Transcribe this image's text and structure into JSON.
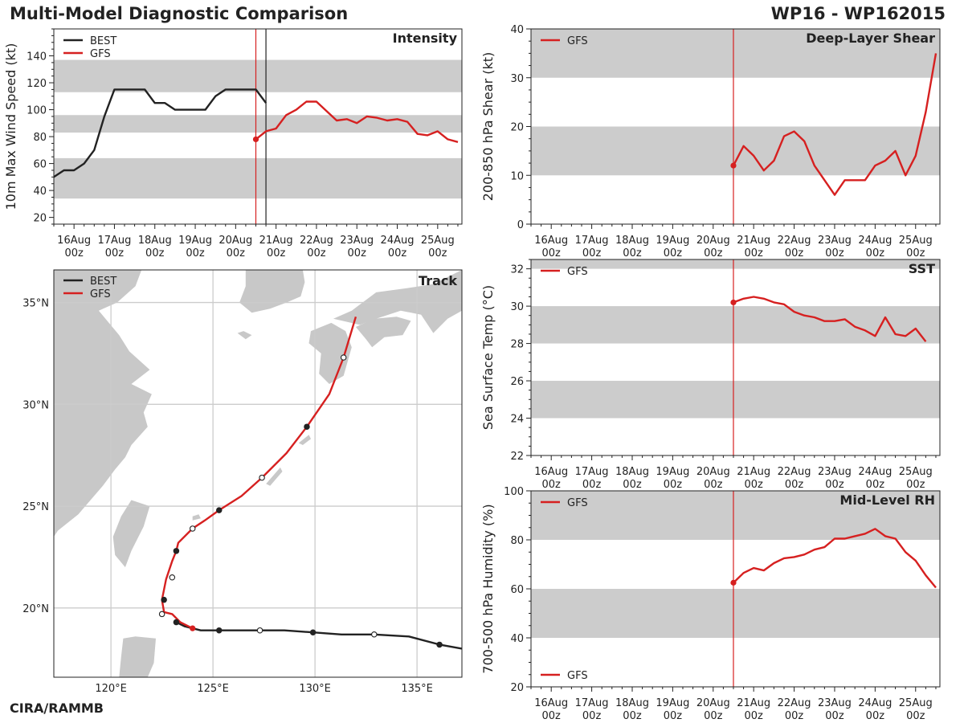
{
  "header": {
    "title": "Multi-Model Diagnostic Comparison",
    "storm_id": "WP16 - WP162015",
    "credit": "CIRA/RAMMB"
  },
  "colors": {
    "best": "#222222",
    "gfs": "#d62020",
    "band": "#cccccc",
    "land": "#c8c8c8",
    "grid": "#cccccc"
  },
  "time_axis": {
    "labels": [
      [
        "16Aug",
        "00z"
      ],
      [
        "17Aug",
        "00z"
      ],
      [
        "18Aug",
        "00z"
      ],
      [
        "19Aug",
        "00z"
      ],
      [
        "20Aug",
        "00z"
      ],
      [
        "21Aug",
        "00z"
      ],
      [
        "22Aug",
        "00z"
      ],
      [
        "23Aug",
        "00z"
      ],
      [
        "24Aug",
        "00z"
      ],
      [
        "25Aug",
        "00z"
      ]
    ],
    "init_day": 20.5,
    "best_last_day": 20.75
  },
  "chart_data": [
    {
      "id": "intensity",
      "type": "line",
      "title": "Intensity",
      "ylabel": "10m Max Wind Speed (kt)",
      "xlim": [
        15.5,
        25.6
      ],
      "ylim": [
        15,
        160
      ],
      "yticks": [
        20,
        40,
        60,
        80,
        100,
        120,
        140
      ],
      "bands": [
        [
          34,
          64
        ],
        [
          83,
          96
        ],
        [
          113,
          137
        ]
      ],
      "legend": [
        "BEST",
        "GFS"
      ],
      "series": [
        {
          "name": "BEST",
          "x": [
            15.5,
            15.75,
            16,
            16.25,
            16.5,
            16.75,
            17,
            17.25,
            17.5,
            17.75,
            18,
            18.25,
            18.5,
            18.75,
            19,
            19.25,
            19.5,
            19.75,
            20,
            20.25,
            20.5,
            20.75
          ],
          "y": [
            50,
            55,
            55,
            60,
            70,
            95,
            115,
            115,
            115,
            115,
            105,
            105,
            100,
            100,
            100,
            100,
            110,
            115,
            115,
            115,
            115,
            105
          ]
        },
        {
          "name": "GFS",
          "x": [
            20.5,
            20.75,
            21,
            21.25,
            21.5,
            21.75,
            22,
            22.25,
            22.5,
            22.75,
            23,
            23.25,
            23.5,
            23.75,
            24,
            24.25,
            24.5,
            24.75,
            25,
            25.25,
            25.5
          ],
          "y": [
            78,
            84,
            86,
            96,
            100,
            106,
            106,
            99,
            92,
            93,
            90,
            95,
            94,
            92,
            93,
            91,
            82,
            81,
            84,
            78,
            76
          ]
        }
      ]
    },
    {
      "id": "shear",
      "type": "line",
      "title": "Deep-Layer Shear",
      "ylabel": "200-850 hPa Shear (kt)",
      "xlim": [
        15.5,
        25.6
      ],
      "ylim": [
        0,
        40
      ],
      "yticks": [
        0,
        10,
        20,
        30,
        40
      ],
      "bands": [
        [
          10,
          20
        ],
        [
          30,
          40
        ]
      ],
      "legend": [
        "GFS"
      ],
      "series": [
        {
          "name": "GFS",
          "x": [
            20.5,
            20.75,
            21,
            21.25,
            21.5,
            21.75,
            22,
            22.25,
            22.5,
            22.75,
            23,
            23.25,
            23.5,
            23.75,
            24,
            24.25,
            24.5,
            24.75,
            25,
            25.25,
            25.5
          ],
          "y": [
            12,
            16,
            14,
            11,
            13,
            18,
            19,
            17,
            12,
            9,
            6,
            9,
            9,
            9,
            12,
            13,
            15,
            10,
            14,
            23,
            35
          ]
        }
      ]
    },
    {
      "id": "sst",
      "type": "line",
      "title": "SST",
      "ylabel": "Sea Surface Temp (°C)",
      "xlim": [
        15.5,
        25.6
      ],
      "ylim": [
        22,
        32.5
      ],
      "yticks": [
        22,
        24,
        26,
        28,
        30,
        32
      ],
      "bands": [
        [
          24,
          26
        ],
        [
          28,
          30
        ],
        [
          32,
          33
        ]
      ],
      "legend": [
        "GFS"
      ],
      "series": [
        {
          "name": "GFS",
          "x": [
            20.5,
            20.75,
            21,
            21.25,
            21.5,
            21.75,
            22,
            22.25,
            22.5,
            22.75,
            23,
            23.25,
            23.5,
            23.75,
            24,
            24.25,
            24.5,
            24.75,
            25,
            25.25
          ],
          "y": [
            30.2,
            30.4,
            30.5,
            30.4,
            30.2,
            30.1,
            29.7,
            29.5,
            29.4,
            29.2,
            29.2,
            29.3,
            28.9,
            28.7,
            28.4,
            29.4,
            28.5,
            28.4,
            28.8,
            28.1
          ]
        }
      ]
    },
    {
      "id": "rh",
      "type": "line",
      "title": "Mid-Level RH",
      "ylabel": "700-500 hPa Humidity (%)",
      "xlim": [
        15.5,
        25.6
      ],
      "ylim": [
        20,
        100
      ],
      "yticks": [
        20,
        40,
        60,
        80,
        100
      ],
      "bands": [
        [
          40,
          60
        ],
        [
          80,
          100
        ]
      ],
      "legend": [
        "GFS"
      ],
      "series": [
        {
          "name": "GFS",
          "x": [
            20.5,
            20.75,
            21,
            21.25,
            21.5,
            21.75,
            22,
            22.25,
            22.5,
            22.75,
            23,
            23.25,
            23.5,
            23.75,
            24,
            24.25,
            24.5,
            24.75,
            25,
            25.25,
            25.5
          ],
          "y": [
            62.5,
            66.5,
            68.5,
            67.5,
            70.5,
            72.5,
            73,
            74,
            76,
            77,
            80.5,
            80.5,
            81.5,
            82.5,
            84.5,
            81.5,
            80.5,
            75,
            71.5,
            65.5,
            60.5
          ]
        }
      ]
    },
    {
      "id": "track",
      "type": "scatter",
      "title": "Track",
      "xlim": [
        117.2,
        137.2
      ],
      "ylim": [
        16.6,
        36.6
      ],
      "xticks": [
        120,
        125,
        130,
        135
      ],
      "xticklabels": [
        "120°E",
        "125°E",
        "130°E",
        "135°E"
      ],
      "yticks": [
        20,
        25,
        30,
        35
      ],
      "yticklabels": [
        "20°N",
        "25°N",
        "30°N",
        "35°N"
      ],
      "legend": [
        "BEST",
        "GFS"
      ],
      "series": [
        {
          "name": "BEST",
          "lon": [
            137.2,
            136.1,
            134.6,
            132.9,
            131.3,
            129.9,
            128.5,
            127.3,
            125.8,
            125.3,
            124.4,
            123.6,
            123.2
          ],
          "lat": [
            18.0,
            18.2,
            18.6,
            18.7,
            18.7,
            18.8,
            18.9,
            18.9,
            18.9,
            18.9,
            18.9,
            19.1,
            19.3
          ]
        },
        {
          "name": "GFS",
          "lon": [
            124.0,
            123.4,
            123.0,
            122.6,
            122.5,
            122.7,
            123.0,
            123.2,
            123.3,
            124.0,
            124.6,
            125.3,
            126.4,
            127.4,
            128.6,
            129.6,
            130.7,
            131.4,
            132.0
          ],
          "lat": [
            19.0,
            19.3,
            19.7,
            19.8,
            20.4,
            21.4,
            22.3,
            22.8,
            23.2,
            23.9,
            24.3,
            24.8,
            25.5,
            26.4,
            27.6,
            28.9,
            30.5,
            32.3,
            34.3
          ]
        }
      ],
      "markers": {
        "best_filled": [
          [
            136.1,
            18.2
          ],
          [
            129.9,
            18.8
          ],
          [
            125.3,
            18.9
          ],
          [
            123.2,
            19.3
          ]
        ],
        "best_open": [
          [
            132.9,
            18.7
          ],
          [
            127.3,
            18.9
          ]
        ],
        "gfs_filled": [
          [
            122.6,
            20.4
          ],
          [
            123.2,
            22.8
          ],
          [
            125.3,
            24.8
          ],
          [
            129.6,
            28.9
          ]
        ],
        "gfs_open": [
          [
            122.5,
            19.7
          ],
          [
            123.0,
            21.5
          ],
          [
            124.0,
            23.9
          ],
          [
            127.4,
            26.4
          ],
          [
            131.4,
            32.3
          ]
        ],
        "gfs_start": [
          124.0,
          19.0
        ]
      }
    }
  ]
}
